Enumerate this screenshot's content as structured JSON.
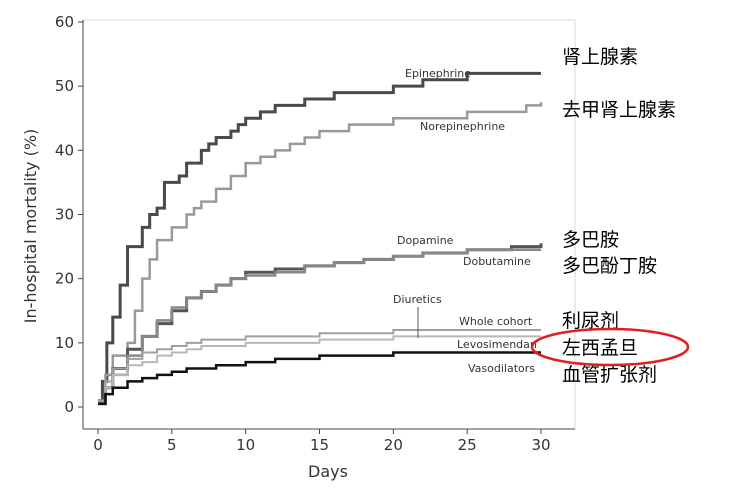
{
  "chart_data": {
    "type": "line",
    "xlabel": "Days",
    "ylabel": "In-hospital mortality (%)",
    "xlim": [
      0,
      30
    ],
    "ylim": [
      0,
      60
    ],
    "xticks": [
      0,
      5,
      10,
      15,
      20,
      25,
      30
    ],
    "yticks": [
      0,
      10,
      20,
      30,
      40,
      50,
      60
    ],
    "grid": false,
    "series": [
      {
        "name": "Epinephrine",
        "color": "#4a4a4a",
        "points": [
          [
            0,
            1
          ],
          [
            0.3,
            4
          ],
          [
            0.6,
            10
          ],
          [
            1,
            14
          ],
          [
            1.5,
            19
          ],
          [
            2,
            25
          ],
          [
            3,
            28
          ],
          [
            3.5,
            30
          ],
          [
            4,
            31
          ],
          [
            4.5,
            35
          ],
          [
            5,
            35
          ],
          [
            5.5,
            36
          ],
          [
            6,
            38
          ],
          [
            7,
            40
          ],
          [
            7.5,
            41
          ],
          [
            8,
            42
          ],
          [
            9,
            43
          ],
          [
            9.5,
            44
          ],
          [
            10,
            45
          ],
          [
            11,
            46
          ],
          [
            12,
            47
          ],
          [
            14,
            48
          ],
          [
            15,
            48
          ],
          [
            16,
            49
          ],
          [
            19,
            49
          ],
          [
            20,
            50
          ],
          [
            22,
            51
          ],
          [
            24,
            51
          ],
          [
            25,
            52
          ],
          [
            30,
            52
          ]
        ]
      },
      {
        "name": "Norepinephrine",
        "color": "#999999",
        "points": [
          [
            0,
            1
          ],
          [
            0.5,
            5
          ],
          [
            1,
            8
          ],
          [
            2,
            10
          ],
          [
            2.5,
            15
          ],
          [
            3,
            20
          ],
          [
            3.5,
            23
          ],
          [
            4,
            26
          ],
          [
            5,
            28
          ],
          [
            6,
            30
          ],
          [
            6.5,
            31
          ],
          [
            7,
            32
          ],
          [
            8,
            34
          ],
          [
            9,
            36
          ],
          [
            10,
            38
          ],
          [
            11,
            39
          ],
          [
            12,
            40
          ],
          [
            13,
            41
          ],
          [
            14,
            42
          ],
          [
            15,
            43
          ],
          [
            16,
            43
          ],
          [
            17,
            44
          ],
          [
            19,
            44
          ],
          [
            20,
            45
          ],
          [
            23,
            45
          ],
          [
            25,
            46
          ],
          [
            27,
            46
          ],
          [
            29,
            47
          ],
          [
            30,
            47.5
          ]
        ]
      },
      {
        "name": "Dopamine",
        "color": "#555555",
        "points": [
          [
            0,
            0.5
          ],
          [
            0.5,
            3
          ],
          [
            1,
            6
          ],
          [
            2,
            9
          ],
          [
            3,
            11
          ],
          [
            4,
            13
          ],
          [
            5,
            15
          ],
          [
            6,
            17
          ],
          [
            7,
            18
          ],
          [
            8,
            19
          ],
          [
            9,
            20
          ],
          [
            10,
            21
          ],
          [
            12,
            21.5
          ],
          [
            14,
            22
          ],
          [
            16,
            22.5
          ],
          [
            18,
            23
          ],
          [
            20,
            23.5
          ],
          [
            22,
            24
          ],
          [
            25,
            24.5
          ],
          [
            28,
            25
          ],
          [
            30,
            25.5
          ]
        ]
      },
      {
        "name": "Dobutamine",
        "color": "#888888",
        "points": [
          [
            0,
            0.5
          ],
          [
            0.5,
            3
          ],
          [
            1,
            5
          ],
          [
            2,
            8
          ],
          [
            3,
            11
          ],
          [
            4,
            13.5
          ],
          [
            5,
            15.5
          ],
          [
            6,
            17
          ],
          [
            7,
            18
          ],
          [
            8,
            19
          ],
          [
            9,
            20
          ],
          [
            10,
            20.5
          ],
          [
            12,
            21
          ],
          [
            14,
            22
          ],
          [
            16,
            22.5
          ],
          [
            18,
            23
          ],
          [
            20,
            23.5
          ],
          [
            22,
            24
          ],
          [
            25,
            24.5
          ],
          [
            28,
            24.5
          ],
          [
            30,
            24.5
          ]
        ]
      },
      {
        "name": "Whole cohort",
        "color": "#a0a0a0",
        "points": [
          [
            0,
            1
          ],
          [
            0.5,
            4
          ],
          [
            1,
            6
          ],
          [
            2,
            7.5
          ],
          [
            3,
            8.5
          ],
          [
            4,
            9
          ],
          [
            5,
            9.5
          ],
          [
            6,
            10
          ],
          [
            7,
            10.5
          ],
          [
            8,
            10.5
          ],
          [
            10,
            11
          ],
          [
            12,
            11
          ],
          [
            15,
            11.5
          ],
          [
            18,
            11.5
          ],
          [
            20,
            12
          ],
          [
            25,
            12
          ],
          [
            30,
            12
          ]
        ]
      },
      {
        "name": "Levosimendan",
        "color": "#b8b8b8",
        "points": [
          [
            0,
            0.5
          ],
          [
            0.5,
            3
          ],
          [
            1,
            5
          ],
          [
            2,
            6.5
          ],
          [
            3,
            7
          ],
          [
            4,
            8
          ],
          [
            5,
            8.5
          ],
          [
            6,
            9
          ],
          [
            7,
            9.5
          ],
          [
            8,
            9.5
          ],
          [
            10,
            10
          ],
          [
            12,
            10
          ],
          [
            15,
            10.5
          ],
          [
            18,
            10.5
          ],
          [
            20,
            11
          ],
          [
            25,
            11
          ],
          [
            30,
            11
          ]
        ]
      },
      {
        "name": "Vasodilators",
        "color": "#111111",
        "points": [
          [
            0,
            0.5
          ],
          [
            0.5,
            2
          ],
          [
            1,
            3
          ],
          [
            2,
            4
          ],
          [
            3,
            4.5
          ],
          [
            4,
            5
          ],
          [
            5,
            5.5
          ],
          [
            6,
            6
          ],
          [
            7,
            6
          ],
          [
            8,
            6.5
          ],
          [
            10,
            7
          ],
          [
            12,
            7.5
          ],
          [
            15,
            8
          ],
          [
            18,
            8
          ],
          [
            20,
            8.5
          ],
          [
            25,
            8.5
          ],
          [
            30,
            8.5
          ]
        ]
      }
    ],
    "annotations": {
      "diuretics": "Diuretics"
    }
  },
  "cn_labels": [
    {
      "id": "epinephrine",
      "text": "肾上腺素"
    },
    {
      "id": "norepinephrine",
      "text": "去甲肾上腺素"
    },
    {
      "id": "dopamine",
      "text": "多巴胺"
    },
    {
      "id": "dobutamine",
      "text": "多巴酚丁胺"
    },
    {
      "id": "diuretics",
      "text": "利尿剂"
    },
    {
      "id": "levosimendan",
      "text": "左西孟旦"
    },
    {
      "id": "vasodilators",
      "text": "血管扩张剂"
    }
  ],
  "highlight_color": "#e02020"
}
